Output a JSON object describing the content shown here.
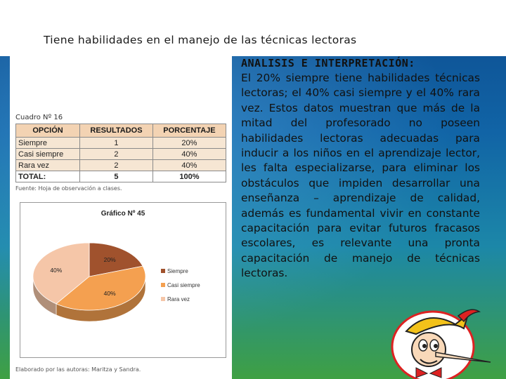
{
  "slide": {
    "title": "Tiene habilidades en el manejo de las técnicas lectoras",
    "analysis_title": "ANALISIS E INTERPRETACIÓN:",
    "analysis_text": "El 20% siempre tiene habilidades técnicas lectoras; el 40% casi siempre y el 40% rara vez. Estos datos muestran que más de la mitad del profesorado no poseen habilidades lectoras adecuadas para inducir a los niños en el aprendizaje lector, les falta especializarse, para eliminar los obstáculos que impiden desarrollar una enseñanza – aprendizaje de calidad, además es fundamental vivir en constante capacitación para evitar futuros fracasos escolares, es relevante una pronta capacitación de manejo de técnicas lectoras."
  },
  "table": {
    "caption": "Cuadro Nº 16",
    "headers": [
      "OPCIÓN",
      "RESULTADOS",
      "PORCENTAJE"
    ],
    "rows": [
      [
        "Siempre",
        "1",
        "20%"
      ],
      [
        "Casi siempre",
        "2",
        "40%"
      ],
      [
        "Rara vez",
        "2",
        "40%"
      ]
    ],
    "total": [
      "TOTAL:",
      "5",
      "100%"
    ],
    "source": "Fuente: Hoja de observación a clases."
  },
  "chart_data": {
    "type": "pie",
    "title": "Gráfico Nº 45",
    "categories": [
      "Siempre",
      "Casi siempre",
      "Rara vez"
    ],
    "values": [
      20,
      40,
      40
    ],
    "data_labels": [
      "20%",
      "40%",
      "40%"
    ],
    "colors": [
      "#a0522d",
      "#f4a050",
      "#f5c6a8"
    ],
    "legend_position": "right",
    "style": "3d"
  },
  "credit": "Elaborado por las autoras: Maritza y Sandra.",
  "colors": {
    "header_band": "#ffffff",
    "table_header": "#f3d3b3",
    "table_cell": "#f6e6d3"
  }
}
